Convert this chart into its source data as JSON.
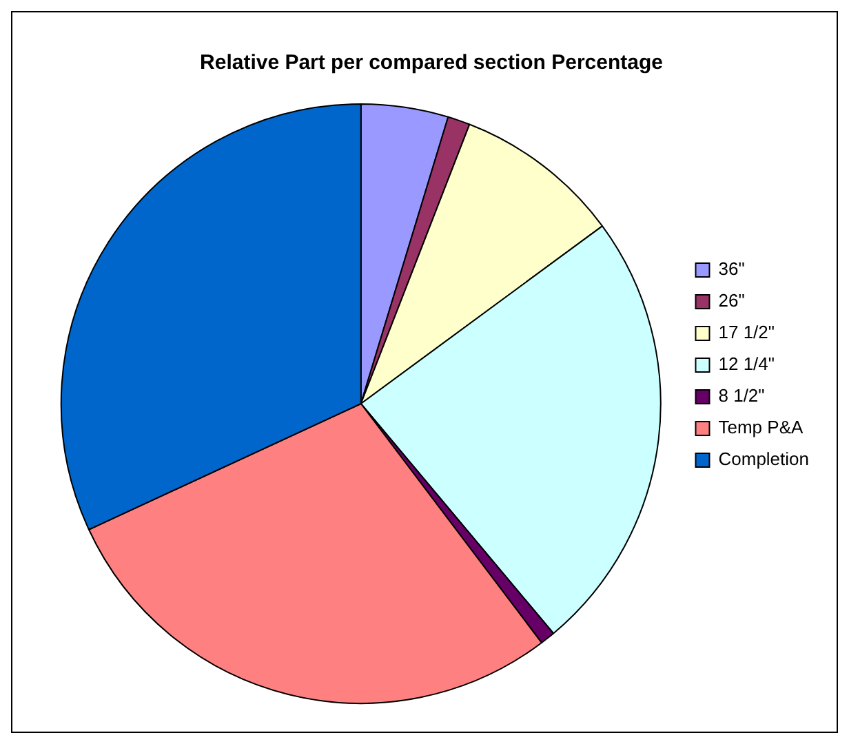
{
  "chart_data": {
    "type": "pie",
    "title": "Relative Part per compared section Percentage",
    "categories": [
      "36\"",
      "26\"",
      "17 1/2\"",
      "12 1/4\"",
      "8 1/2\"",
      "Temp P&A",
      "Completion"
    ],
    "values": [
      4.7,
      1.2,
      9.0,
      24.0,
      0.8,
      28.4,
      31.9
    ],
    "colors": [
      "#9999ff",
      "#993366",
      "#ffffcc",
      "#ccffff",
      "#660066",
      "#ff8080",
      "#0066cc"
    ],
    "legend": "right"
  }
}
